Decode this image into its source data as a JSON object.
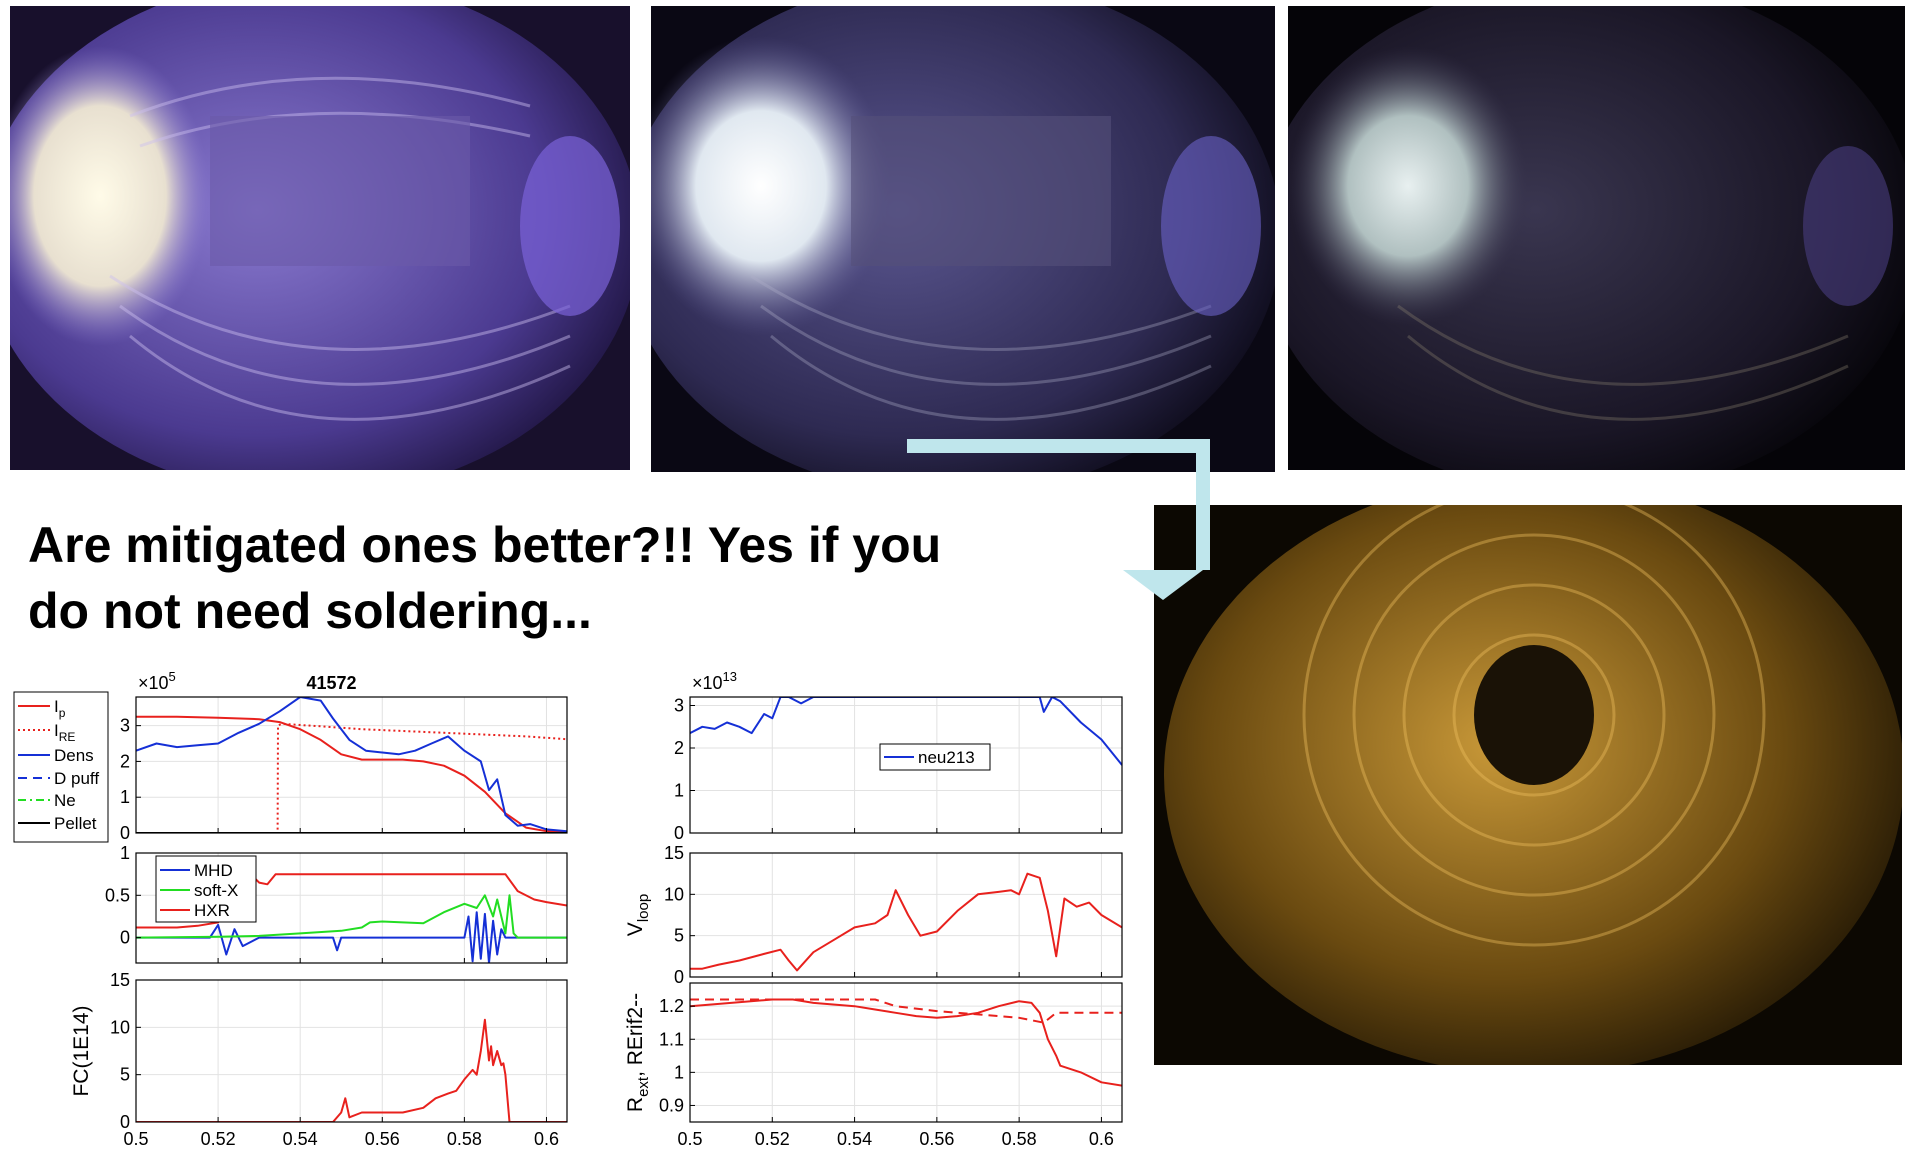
{
  "headline": {
    "line1": "Are mitigated ones better?!! Yes if you",
    "line2": "do not need soldering..."
  },
  "photos": [
    {
      "name": "vessel-photo-1",
      "tint": "#6a4fb0",
      "description_color": "purple"
    },
    {
      "name": "vessel-photo-2",
      "tint": "#4a4870",
      "description_color": "dark-purple"
    },
    {
      "name": "vessel-photo-3",
      "tint": "#201c2c",
      "description_color": "dark"
    },
    {
      "name": "vessel-photo-4",
      "tint": "#6a4a10",
      "description_color": "golden"
    }
  ],
  "arrow_color": "#bfe6ec",
  "colors": {
    "red": "#e8211d",
    "blue": "#1530d6",
    "green": "#22dd22",
    "black": "#000000"
  },
  "chart_data": [
    {
      "type": "line",
      "title": "41572",
      "exponent_label": "×10",
      "exponent_power": "5",
      "xlim": [
        0.5,
        0.605
      ],
      "ylim": [
        0,
        3.8
      ],
      "yticks": [
        "0",
        "1",
        "2",
        "3"
      ],
      "legend": [
        "I",
        "I",
        "Dens",
        "D puff",
        "Ne",
        "Pellet"
      ],
      "legend_subscripts": [
        "p",
        "RE",
        "",
        "",
        "",
        ""
      ],
      "series": [
        {
          "name": "I_p",
          "color": "#e8211d",
          "style": "solid",
          "x": [
            0.5,
            0.51,
            0.52,
            0.53,
            0.535,
            0.54,
            0.545,
            0.55,
            0.555,
            0.56,
            0.565,
            0.57,
            0.575,
            0.58,
            0.585,
            0.59,
            0.595,
            0.6,
            0.605
          ],
          "y": [
            3.25,
            3.25,
            3.22,
            3.18,
            3.1,
            2.9,
            2.6,
            2.2,
            2.05,
            2.05,
            2.05,
            2.0,
            1.88,
            1.6,
            1.15,
            0.55,
            0.15,
            0.05,
            0.02
          ]
        },
        {
          "name": "I_RE",
          "color": "#e8211d",
          "style": "dotted",
          "x": [
            0.5,
            0.5345,
            0.5346,
            0.5355,
            0.545,
            0.555,
            0.565,
            0.575,
            0.585,
            0.595,
            0.605
          ],
          "y": [
            0,
            0,
            3.0,
            3.05,
            2.98,
            2.9,
            2.85,
            2.8,
            2.75,
            2.7,
            2.62
          ]
        },
        {
          "name": "Dens",
          "color": "#1530d6",
          "style": "solid",
          "x": [
            0.5,
            0.505,
            0.51,
            0.515,
            0.52,
            0.525,
            0.53,
            0.535,
            0.54,
            0.545,
            0.548,
            0.552,
            0.556,
            0.56,
            0.564,
            0.568,
            0.572,
            0.576,
            0.58,
            0.584,
            0.586,
            0.588,
            0.59,
            0.593,
            0.596,
            0.6,
            0.605
          ],
          "y": [
            2.3,
            2.5,
            2.4,
            2.45,
            2.5,
            2.8,
            3.05,
            3.4,
            3.8,
            3.7,
            3.2,
            2.6,
            2.3,
            2.25,
            2.2,
            2.3,
            2.5,
            2.7,
            2.3,
            2.0,
            1.2,
            1.5,
            0.5,
            0.2,
            0.25,
            0.1,
            0.05
          ]
        },
        {
          "name": "D puff",
          "color": "#1530d6",
          "style": "dashed",
          "x": [
            0.5,
            0.605
          ],
          "y": [
            0,
            0
          ]
        },
        {
          "name": "Ne",
          "color": "#22dd22",
          "style": "dashdot",
          "x": [
            0.5,
            0.605
          ],
          "y": [
            0,
            0
          ]
        },
        {
          "name": "Pellet",
          "color": "#000000",
          "style": "solid",
          "x": [
            0.5,
            0.605
          ],
          "y": [
            0,
            0
          ]
        }
      ]
    },
    {
      "type": "line",
      "xlim": [
        0.5,
        0.605
      ],
      "ylim": [
        -0.3,
        1
      ],
      "yticks": [
        "0",
        "0.5",
        "1"
      ],
      "legend": [
        "MHD",
        "soft-X",
        "HXR"
      ],
      "series": [
        {
          "name": "MHD",
          "color": "#1530d6",
          "x": [
            0.5,
            0.518,
            0.52,
            0.522,
            0.524,
            0.526,
            0.53,
            0.548,
            0.549,
            0.55,
            0.58,
            0.581,
            0.582,
            0.583,
            0.584,
            0.585,
            0.586,
            0.587,
            0.588,
            0.589,
            0.59,
            0.605
          ],
          "y": [
            0,
            0,
            0.15,
            -0.2,
            0.1,
            -0.1,
            0,
            0,
            -0.15,
            0,
            0,
            0.25,
            -0.28,
            0.3,
            -0.25,
            0.28,
            -0.3,
            0.2,
            -0.2,
            0.1,
            0,
            0
          ]
        },
        {
          "name": "soft-X",
          "color": "#22dd22",
          "x": [
            0.5,
            0.52,
            0.53,
            0.54,
            0.55,
            0.555,
            0.557,
            0.56,
            0.57,
            0.575,
            0.58,
            0.583,
            0.585,
            0.587,
            0.588,
            0.59,
            0.591,
            0.592,
            0.593,
            0.605
          ],
          "y": [
            0,
            0.01,
            0.02,
            0.05,
            0.08,
            0.12,
            0.18,
            0.19,
            0.17,
            0.3,
            0.4,
            0.35,
            0.5,
            0.25,
            0.45,
            0.05,
            0.5,
            0.05,
            0,
            0
          ]
        },
        {
          "name": "HXR",
          "color": "#e8211d",
          "x": [
            0.5,
            0.51,
            0.515,
            0.52,
            0.522,
            0.524,
            0.526,
            0.528,
            0.53,
            0.532,
            0.534,
            0.59,
            0.593,
            0.597,
            0.6,
            0.605
          ],
          "y": [
            0.12,
            0.12,
            0.14,
            0.18,
            0.3,
            0.55,
            0.75,
            0.75,
            0.65,
            0.63,
            0.75,
            0.75,
            0.55,
            0.45,
            0.42,
            0.38
          ]
        }
      ]
    },
    {
      "type": "line",
      "ylabel": "FC(1E14)",
      "xlim": [
        0.5,
        0.605
      ],
      "ylim": [
        0,
        15
      ],
      "yticks": [
        "0",
        "5",
        "10",
        "15"
      ],
      "xticks": [
        "0.5",
        "0.52",
        "0.54",
        "0.56",
        "0.58",
        "0.6"
      ],
      "series": [
        {
          "name": "FC",
          "color": "#e8211d",
          "x": [
            0.5,
            0.548,
            0.55,
            0.551,
            0.552,
            0.555,
            0.56,
            0.565,
            0.57,
            0.573,
            0.576,
            0.578,
            0.58,
            0.582,
            0.583,
            0.584,
            0.585,
            0.586,
            0.5865,
            0.587,
            0.588,
            0.589,
            0.5895,
            0.59,
            0.591,
            0.605
          ],
          "y": [
            0,
            0,
            1,
            2.5,
            0.5,
            1,
            1,
            1,
            1.5,
            2.5,
            3,
            3.3,
            4.5,
            5.5,
            5,
            7.5,
            10.8,
            6.5,
            8,
            6,
            7.5,
            6,
            6.2,
            5,
            0,
            0
          ]
        }
      ]
    },
    {
      "type": "line",
      "exponent_label": "×10",
      "exponent_power": "13",
      "xlim": [
        0.5,
        0.605
      ],
      "ylim": [
        0,
        3.2
      ],
      "yticks": [
        "0",
        "1",
        "2",
        "3"
      ],
      "legend": [
        "neu213"
      ],
      "series": [
        {
          "name": "neu213",
          "color": "#1530d6",
          "x": [
            0.5,
            0.503,
            0.506,
            0.509,
            0.512,
            0.515,
            0.518,
            0.52,
            0.522,
            0.524,
            0.527,
            0.53,
            0.585,
            0.586,
            0.588,
            0.59,
            0.595,
            0.6,
            0.605
          ],
          "y": [
            2.35,
            2.5,
            2.45,
            2.6,
            2.5,
            2.35,
            2.8,
            2.7,
            3.2,
            3.2,
            3.05,
            3.2,
            3.2,
            2.85,
            3.2,
            3.1,
            2.6,
            2.2,
            1.6
          ]
        }
      ]
    },
    {
      "type": "line",
      "ylabel": "V",
      "ylabel_sub": "loop",
      "xlim": [
        0.5,
        0.605
      ],
      "ylim": [
        0,
        15
      ],
      "yticks": [
        "0",
        "5",
        "10",
        "15"
      ],
      "series": [
        {
          "name": "Vloop",
          "color": "#e8211d",
          "x": [
            0.5,
            0.503,
            0.507,
            0.512,
            0.518,
            0.522,
            0.524,
            0.526,
            0.53,
            0.535,
            0.54,
            0.545,
            0.548,
            0.55,
            0.553,
            0.556,
            0.56,
            0.565,
            0.57,
            0.575,
            0.578,
            0.58,
            0.582,
            0.585,
            0.587,
            0.589,
            0.591,
            0.594,
            0.597,
            0.6,
            0.605
          ],
          "y": [
            1,
            1,
            1.5,
            2,
            2.8,
            3.3,
            2,
            0.8,
            3,
            4.5,
            6,
            6.5,
            7.5,
            10.5,
            7.5,
            5,
            5.5,
            8,
            10,
            10.3,
            10.5,
            10,
            12.5,
            12,
            8,
            2.5,
            9.5,
            8.5,
            9,
            7.5,
            6
          ]
        }
      ]
    },
    {
      "type": "line",
      "ylabel": "R",
      "ylabel_sub": "ext",
      "ylabel_rest": ", RErif2--",
      "xlim": [
        0.5,
        0.605
      ],
      "ylim": [
        0.85,
        1.27
      ],
      "yticks": [
        "0.9",
        "1",
        "1.1",
        "1.2"
      ],
      "xticks": [
        "0.5",
        "0.52",
        "0.54",
        "0.56",
        "0.58",
        "0.6"
      ],
      "series": [
        {
          "name": "Rext",
          "color": "#e8211d",
          "style": "solid",
          "x": [
            0.5,
            0.51,
            0.52,
            0.525,
            0.53,
            0.54,
            0.545,
            0.55,
            0.555,
            0.56,
            0.565,
            0.57,
            0.575,
            0.58,
            0.583,
            0.585,
            0.587,
            0.589,
            0.59,
            0.595,
            0.6,
            0.605
          ],
          "y": [
            1.2,
            1.21,
            1.22,
            1.22,
            1.21,
            1.2,
            1.19,
            1.18,
            1.17,
            1.165,
            1.17,
            1.18,
            1.2,
            1.215,
            1.21,
            1.18,
            1.1,
            1.05,
            1.02,
            1.0,
            0.97,
            0.96
          ]
        },
        {
          "name": "RErif2",
          "color": "#e8211d",
          "style": "dashed",
          "x": [
            0.5,
            0.545,
            0.55,
            0.56,
            0.57,
            0.58,
            0.586,
            0.589,
            0.591,
            0.605
          ],
          "y": [
            1.22,
            1.22,
            1.2,
            1.185,
            1.175,
            1.165,
            1.15,
            1.18,
            1.18,
            1.18
          ]
        }
      ]
    }
  ]
}
